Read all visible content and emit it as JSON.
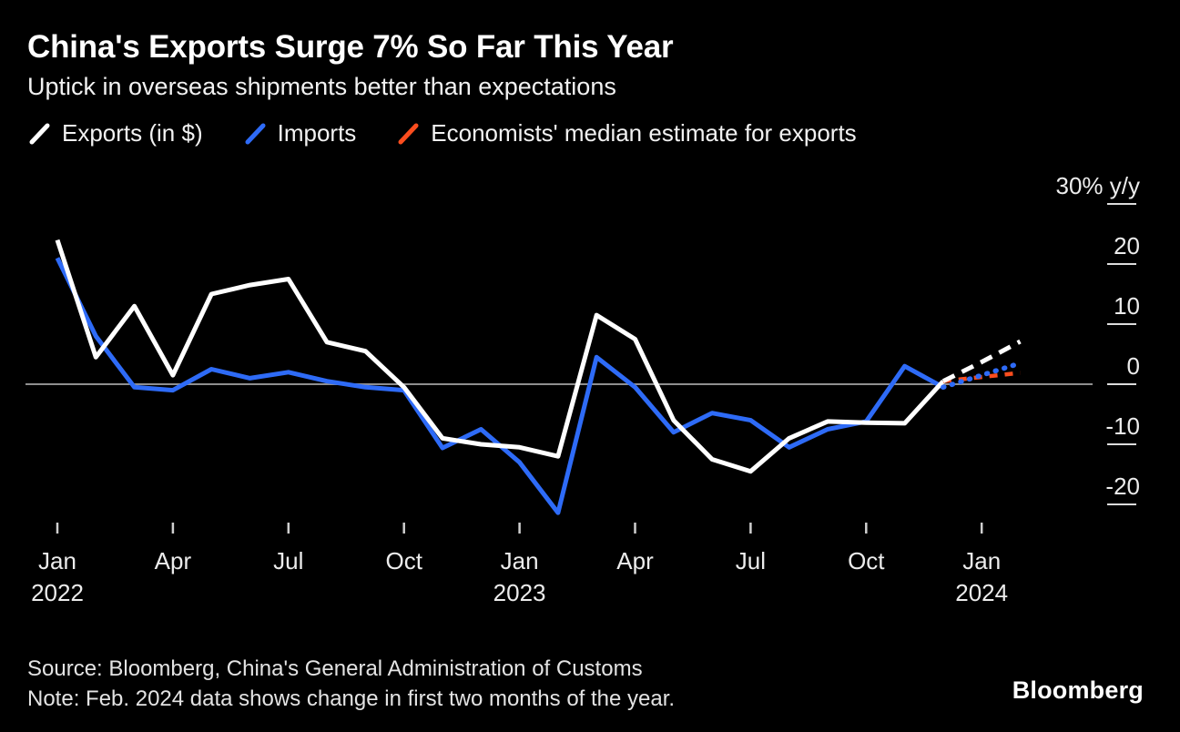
{
  "header": {
    "title": "China's Exports Surge 7% So Far This Year",
    "subtitle": "Uptick in overseas shipments better than expectations"
  },
  "legend": [
    {
      "label": "Exports (in $)",
      "color": "#ffffff"
    },
    {
      "label": "Imports",
      "color": "#2e6bf7"
    },
    {
      "label": "Economists' median estimate for exports",
      "color": "#fb4d1e"
    }
  ],
  "chart_data": {
    "type": "line",
    "title": "China's Exports Surge 7% So Far This Year",
    "subtitle": "Uptick in overseas shipments better than expectations",
    "unit": "% y/y",
    "ylim": [
      -27,
      32
    ],
    "x_labels": [
      "Jan 2022",
      "Feb 2022",
      "Mar 2022",
      "Apr 2022",
      "May 2022",
      "Jun 2022",
      "Jul 2022",
      "Aug 2022",
      "Sep 2022",
      "Oct 2022",
      "Nov 2022",
      "Dec 2022",
      "Jan 2023",
      "Feb 2023",
      "Mar 2023",
      "Apr 2023",
      "May 2023",
      "Jun 2023",
      "Jul 2023",
      "Aug 2023",
      "Sep 2023",
      "Oct 2023",
      "Nov 2023",
      "Dec 2023",
      "Jan 2024",
      "Feb 2024"
    ],
    "x_ticks": [
      {
        "index": 0,
        "month": "Jan",
        "year": "2022"
      },
      {
        "index": 3,
        "month": "Apr"
      },
      {
        "index": 6,
        "month": "Jul"
      },
      {
        "index": 9,
        "month": "Oct"
      },
      {
        "index": 12,
        "month": "Jan",
        "year": "2023"
      },
      {
        "index": 15,
        "month": "Apr"
      },
      {
        "index": 18,
        "month": "Jul"
      },
      {
        "index": 21,
        "month": "Oct"
      },
      {
        "index": 24,
        "month": "Jan",
        "year": "2024"
      }
    ],
    "y_ticks": [
      {
        "value": 30,
        "label": "30% y/y"
      },
      {
        "value": 20,
        "label": "20"
      },
      {
        "value": 10,
        "label": "10"
      },
      {
        "value": 0,
        "label": "0"
      },
      {
        "value": -10,
        "label": "-10"
      },
      {
        "value": -20,
        "label": "-20"
      }
    ],
    "series": [
      {
        "id": "imports",
        "legend": "Imports",
        "color": "#2e6bf7",
        "width": 5,
        "dash": "",
        "linecap": "butt",
        "values": [
          21,
          8,
          -0.5,
          -1,
          2.5,
          1,
          2,
          0.5,
          -0.5,
          -1,
          -10.6,
          -7.5,
          -13,
          -21.4,
          4.5,
          -0.5,
          -8,
          -4.8,
          -6,
          -10.5,
          -7.5,
          -6.2,
          3,
          -0.5,
          null,
          null
        ]
      },
      {
        "id": "exports",
        "legend": "Exports (in $)",
        "color": "#ffffff",
        "width": 5,
        "dash": "",
        "linecap": "butt",
        "values": [
          24,
          4.5,
          13,
          1.5,
          15,
          16.5,
          17.5,
          7,
          5.5,
          -0.5,
          -9,
          -10,
          -10.5,
          -12,
          11.5,
          7.5,
          -6,
          -12.5,
          -14.5,
          -9,
          -6.2,
          -6.4,
          -6.5,
          0.5,
          null,
          null
        ]
      },
      {
        "id": "exports-estimate",
        "legend": "Economists' median estimate for exports",
        "color": "#fb4d1e",
        "width": 4.5,
        "dash": "9 8",
        "linecap": "butt",
        "values": [
          null,
          null,
          null,
          null,
          null,
          null,
          null,
          null,
          null,
          null,
          null,
          null,
          null,
          null,
          null,
          null,
          null,
          null,
          null,
          null,
          null,
          null,
          null,
          0.5,
          1.2,
          1.9
        ]
      },
      {
        "id": "imports-jan-feb-2024",
        "legend": "Imports",
        "color": "#2e6bf7",
        "width": 5.5,
        "dash": "1 9",
        "linecap": "round",
        "values": [
          null,
          null,
          null,
          null,
          null,
          null,
          null,
          null,
          null,
          null,
          null,
          null,
          null,
          null,
          null,
          null,
          null,
          null,
          null,
          null,
          null,
          null,
          null,
          -0.5,
          1.5,
          3.5
        ]
      },
      {
        "id": "exports-jan-feb-2024",
        "legend": "Exports (in $)",
        "color": "#ffffff",
        "width": 5,
        "dash": "14 9",
        "linecap": "butt",
        "values": [
          null,
          null,
          null,
          null,
          null,
          null,
          null,
          null,
          null,
          null,
          null,
          null,
          null,
          null,
          null,
          null,
          null,
          null,
          null,
          null,
          null,
          null,
          null,
          0.5,
          3.7,
          7.1
        ]
      }
    ]
  },
  "footer": {
    "source": "Source: Bloomberg, China's General Administration of Customs",
    "note": "Note: Feb. 2024 data shows change in first two months of the year.",
    "brand": "Bloomberg"
  }
}
